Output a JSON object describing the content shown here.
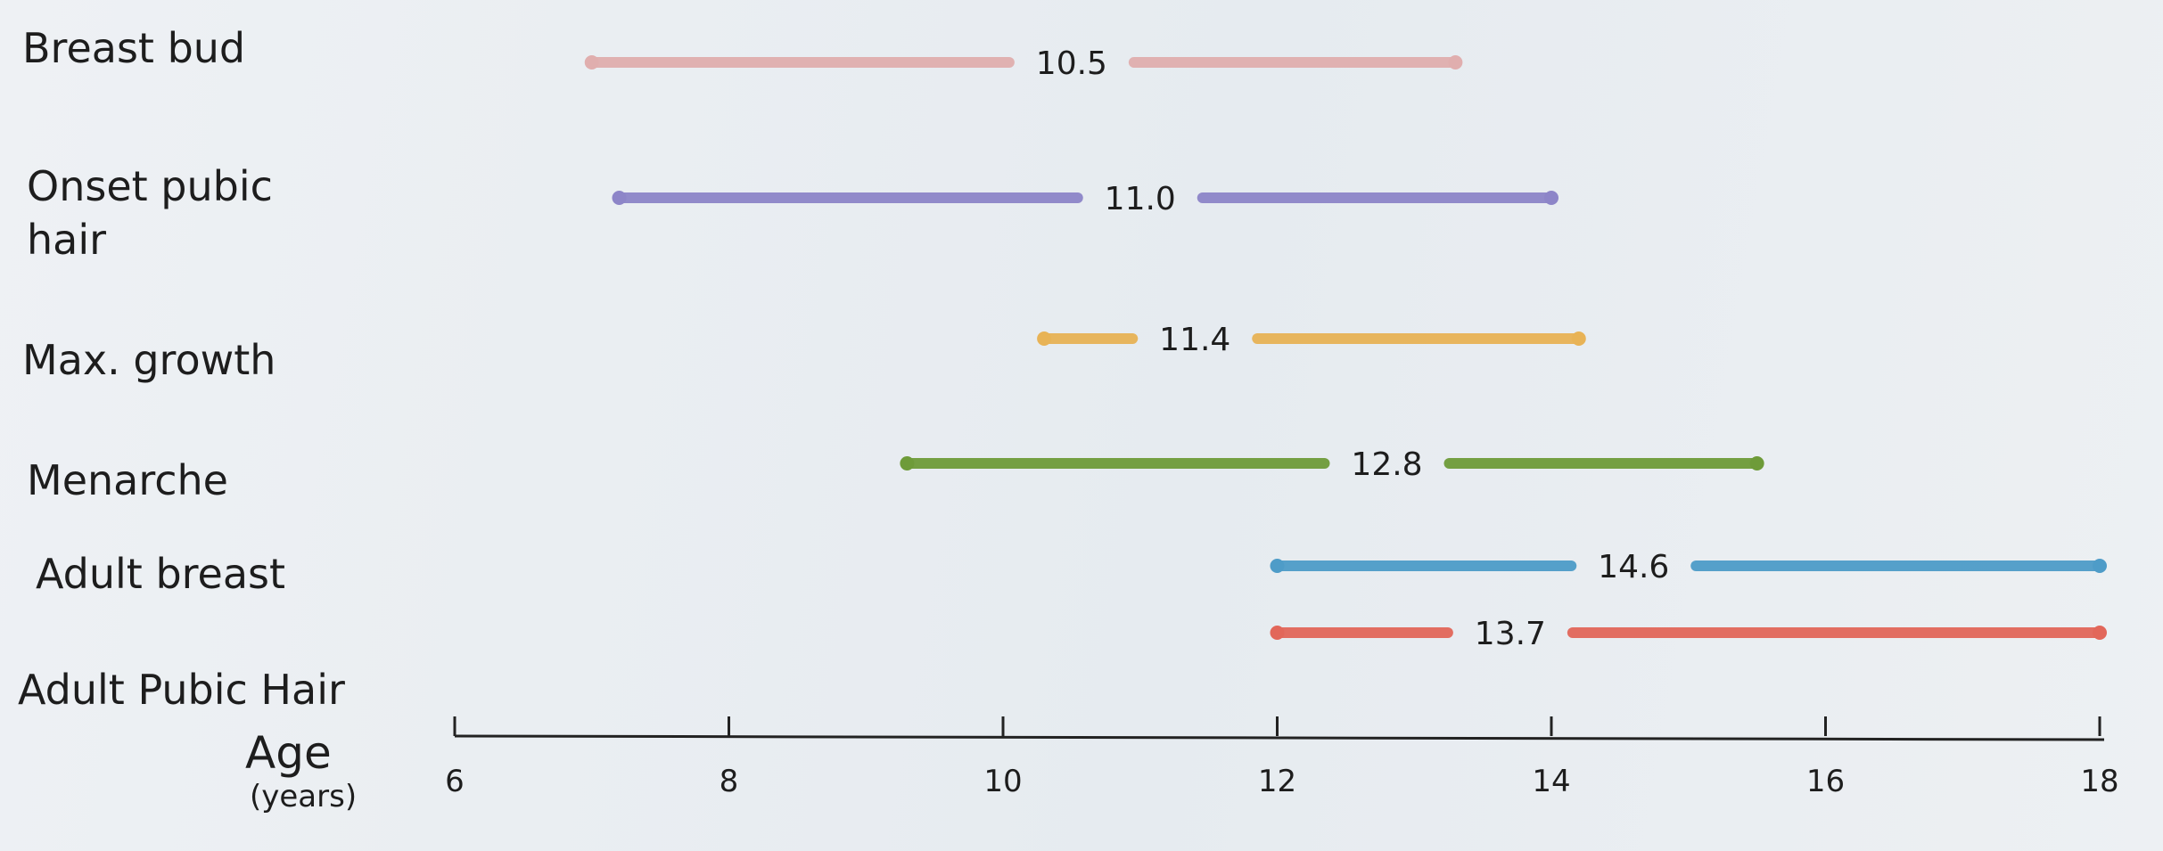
{
  "chart_data": {
    "type": "range",
    "axis": {
      "label": "Age",
      "sublabel": "(years)",
      "xlim": [
        6,
        18
      ],
      "ticks": [
        6,
        8,
        10,
        12,
        14,
        16,
        18
      ]
    },
    "rows": [
      {
        "name": "Breast bud",
        "start": 7.0,
        "end": 13.3,
        "median": 10.5,
        "median_text": "10.5",
        "color": "#e0aeae"
      },
      {
        "name": "Onset pubic hair",
        "start": 7.2,
        "end": 14.0,
        "median": 11.0,
        "median_text": "11.0",
        "color": "#8d85c8"
      },
      {
        "name": "Max. growth",
        "start": 10.3,
        "end": 14.2,
        "median": 11.4,
        "median_text": "11.4",
        "color": "#e8b356"
      },
      {
        "name": "Menarche",
        "start": 9.3,
        "end": 15.5,
        "median": 12.8,
        "median_text": "12.8",
        "color": "#6e9b39"
      },
      {
        "name": "Adult breast",
        "start": 12.0,
        "end": 18.0,
        "median": 14.6,
        "median_text": "14.6",
        "color": "#4e9cc8"
      },
      {
        "name": "Adult Pubic Hair",
        "start": 12.0,
        "end": 18.0,
        "median": 13.7,
        "median_text": "13.7",
        "color": "#e2675a"
      }
    ]
  }
}
